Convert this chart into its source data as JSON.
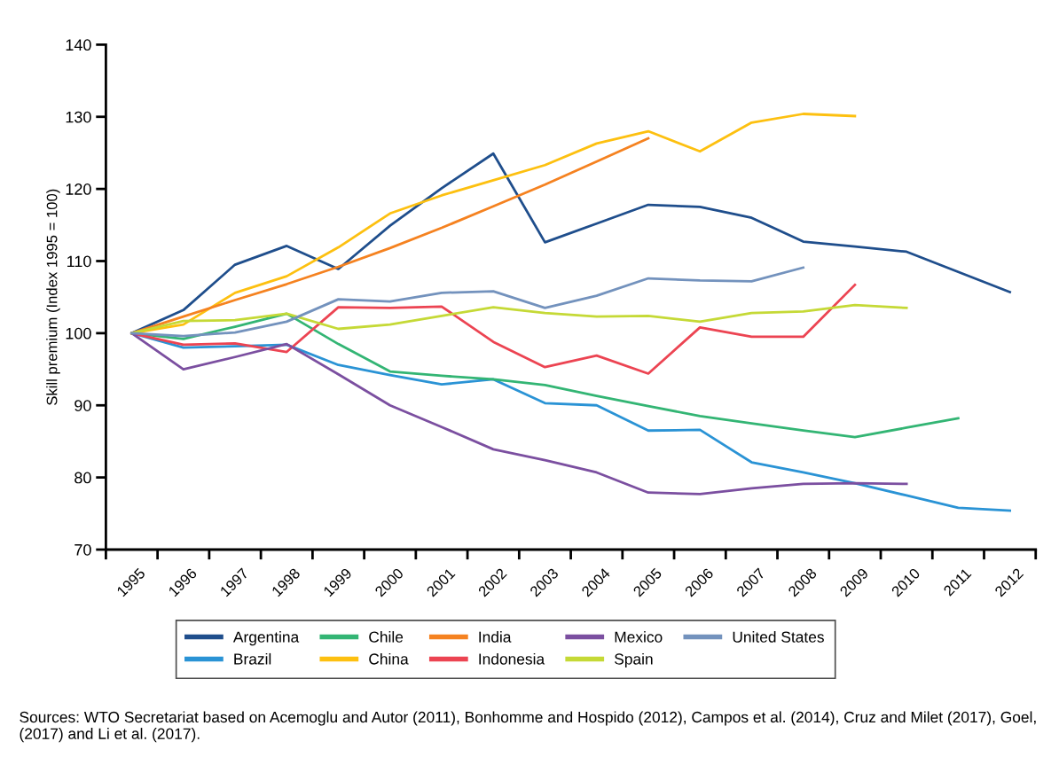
{
  "chart_data": {
    "type": "line",
    "ylabel": "Skill premium (Index 1995 = 100)",
    "categories": [
      "1995",
      "1996",
      "1997",
      "1998",
      "1999",
      "2000",
      "2001",
      "2002",
      "2003",
      "2004",
      "2005",
      "2006",
      "2007",
      "2008",
      "2009",
      "2010",
      "2011",
      "2012"
    ],
    "ylim": [
      70,
      140
    ],
    "yticks": [
      70,
      80,
      90,
      100,
      110,
      120,
      130,
      140
    ],
    "grid": false,
    "legend": "bottom",
    "line_style": "solid",
    "marker": "none",
    "series": [
      {
        "name": "Argentina",
        "color": "#1f4e8c",
        "values": [
          100,
          103.2,
          109.5,
          112.1,
          108.9,
          114.9,
          120.1,
          124.9,
          112.6,
          115.2,
          117.8,
          117.5,
          116.0,
          112.7,
          112.0,
          111.3,
          108.5,
          105.7
        ]
      },
      {
        "name": "Brazil",
        "color": "#2a93d5",
        "values": [
          100,
          98.0,
          98.2,
          98.4,
          95.6,
          94.2,
          92.9,
          93.6,
          90.3,
          90.0,
          86.5,
          86.6,
          82.1,
          80.7,
          79.2,
          77.5,
          75.8,
          75.4
        ]
      },
      {
        "name": "Chile",
        "color": "#33b574",
        "values": [
          100,
          99.2,
          100.9,
          102.7,
          98.5,
          94.7,
          94.1,
          93.6,
          92.8,
          91.3,
          89.9,
          88.5,
          87.5,
          86.5,
          85.6,
          86.9,
          88.2,
          null
        ]
      },
      {
        "name": "China",
        "color": "#fdc010",
        "values": [
          100,
          101.2,
          105.6,
          107.9,
          111.9,
          116.6,
          119.1,
          121.2,
          123.3,
          126.3,
          128.0,
          125.2,
          129.2,
          130.4,
          130.1,
          null,
          null,
          null
        ]
      },
      {
        "name": "India",
        "color": "#f58220",
        "values": [
          100,
          102.3,
          104.6,
          106.8,
          109.2,
          111.8,
          114.6,
          117.6,
          120.6,
          123.8,
          127.0,
          null,
          null,
          null,
          null,
          null,
          null,
          null
        ]
      },
      {
        "name": "Indonesia",
        "color": "#ec4452",
        "values": [
          100,
          98.4,
          98.6,
          97.4,
          103.6,
          103.5,
          103.7,
          98.8,
          95.3,
          96.9,
          94.4,
          100.8,
          99.5,
          99.5,
          106.7,
          null,
          null,
          null
        ]
      },
      {
        "name": "Mexico",
        "color": "#7b4fa0",
        "values": [
          100,
          95.0,
          96.7,
          98.5,
          94.3,
          90.0,
          87.0,
          83.9,
          82.4,
          80.7,
          77.9,
          77.7,
          78.5,
          79.1,
          79.2,
          79.1,
          null,
          null
        ]
      },
      {
        "name": "Spain",
        "color": "#c5d936",
        "values": [
          100,
          101.7,
          101.8,
          102.7,
          100.6,
          101.2,
          102.4,
          103.6,
          102.8,
          102.3,
          102.4,
          101.6,
          102.8,
          103.0,
          103.9,
          103.5,
          null,
          null
        ]
      },
      {
        "name": "United States",
        "color": "#7392bd",
        "values": [
          100,
          99.6,
          100.1,
          101.6,
          104.7,
          104.4,
          105.6,
          105.8,
          103.5,
          105.2,
          107.6,
          107.3,
          107.2,
          109.1,
          null,
          null,
          null,
          null
        ]
      }
    ],
    "annotations": [
      "Sources: WTO Secretariat based on Acemoglu and Autor (2011), Bonhomme and Hospido (2012), Campos et al. (2014), Cruz and Milet (2017), Goel, (2017) and Li et al. (2017)."
    ]
  }
}
